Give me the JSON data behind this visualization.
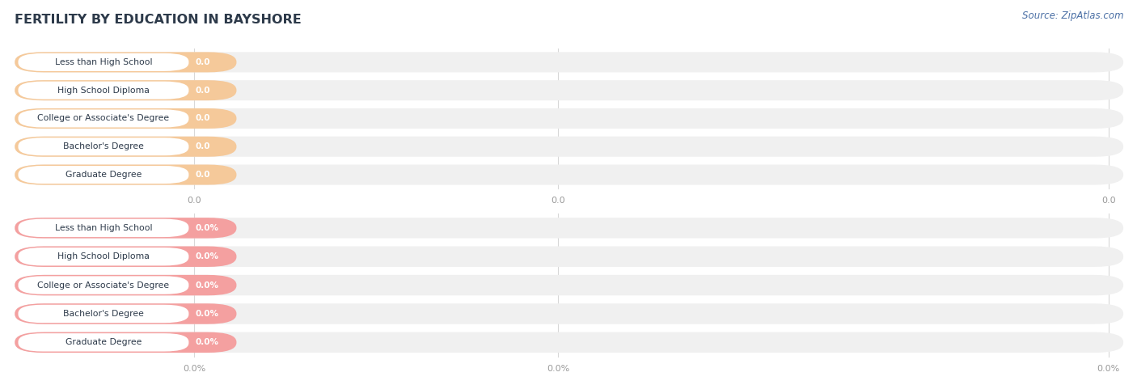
{
  "title": "FERTILITY BY EDUCATION IN BAYSHORE",
  "source": "Source: ZipAtlas.com",
  "categories": [
    "Less than High School",
    "High School Diploma",
    "College or Associate's Degree",
    "Bachelor's Degree",
    "Graduate Degree"
  ],
  "group1_values": [
    0.0,
    0.0,
    0.0,
    0.0,
    0.0
  ],
  "group2_values": [
    0.0,
    0.0,
    0.0,
    0.0,
    0.0
  ],
  "group1_bar_color": "#f5c99a",
  "group2_bar_color": "#f4a0a0",
  "group1_label_bg": "#ffffff",
  "group2_label_bg": "#ffffff",
  "track_color": "#f0f0f0",
  "title_color": "#2d3a4a",
  "label_color": "#2d3a4a",
  "tick_color": "#999999",
  "source_color": "#4a6fa5",
  "background_color": "#ffffff",
  "x_tick_labels_group1": [
    "0.0",
    "0.0",
    "0.0"
  ],
  "x_tick_labels_group2": [
    "0.0%",
    "0.0%",
    "0.0%"
  ]
}
